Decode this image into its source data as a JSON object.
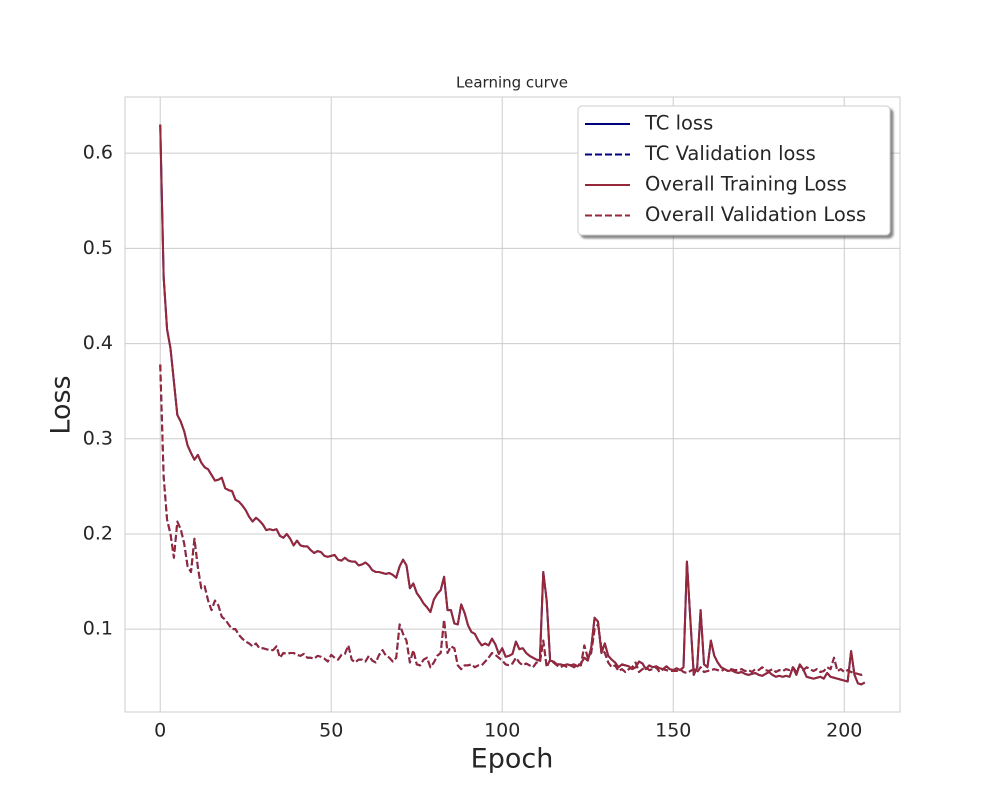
{
  "chart_data": {
    "type": "line",
    "title": "Learning curve",
    "x_label": "Epoch",
    "y_label": "Loss",
    "x": [
      0,
      1,
      2,
      3,
      4,
      5,
      6,
      7,
      8,
      9,
      10,
      11,
      12,
      13,
      14,
      15,
      16,
      17,
      18,
      19,
      20,
      21,
      22,
      23,
      24,
      25,
      26,
      27,
      28,
      29,
      30,
      31,
      32,
      33,
      34,
      35,
      36,
      37,
      38,
      39,
      40,
      41,
      42,
      43,
      44,
      45,
      46,
      47,
      48,
      49,
      50,
      51,
      52,
      53,
      54,
      55,
      56,
      57,
      58,
      59,
      60,
      61,
      62,
      63,
      64,
      65,
      66,
      67,
      68,
      69,
      70,
      71,
      72,
      73,
      74,
      75,
      76,
      77,
      78,
      79,
      80,
      81,
      82,
      83,
      84,
      85,
      86,
      87,
      88,
      89,
      90,
      91,
      92,
      93,
      94,
      95,
      96,
      97,
      98,
      99,
      100,
      101,
      102,
      103,
      104,
      105,
      106,
      107,
      108,
      109,
      110,
      111,
      112,
      113,
      114,
      115,
      116,
      117,
      118,
      119,
      120,
      121,
      122,
      123,
      124,
      125,
      126,
      127,
      128,
      129,
      130,
      131,
      132,
      133,
      134,
      135,
      136,
      137,
      138,
      139,
      140,
      141,
      142,
      143,
      144,
      145,
      146,
      147,
      148,
      149,
      150,
      151,
      152,
      153,
      154,
      155,
      156,
      157,
      158,
      159,
      160,
      161,
      162,
      163,
      164,
      165,
      166,
      167,
      168,
      169,
      170,
      171,
      172,
      173,
      174,
      175,
      176,
      177,
      178,
      179,
      180,
      181,
      182,
      183,
      184,
      185,
      186,
      187,
      188,
      189,
      190,
      191,
      192,
      193,
      194,
      195,
      196,
      197,
      198,
      199,
      200,
      201,
      202,
      203,
      204,
      205,
      206
    ],
    "series": [
      {
        "name": "TC loss",
        "color": "#00007f",
        "linestyle": "solid",
        "values": [
          0.63,
          0.47,
          0.415,
          0.395,
          0.36,
          0.325,
          0.318,
          0.308,
          0.293,
          0.285,
          0.278,
          0.283,
          0.275,
          0.27,
          0.268,
          0.262,
          0.256,
          0.257,
          0.259,
          0.248,
          0.246,
          0.245,
          0.236,
          0.234,
          0.23,
          0.225,
          0.218,
          0.213,
          0.217,
          0.214,
          0.21,
          0.204,
          0.205,
          0.204,
          0.205,
          0.198,
          0.196,
          0.2,
          0.195,
          0.188,
          0.193,
          0.188,
          0.187,
          0.187,
          0.183,
          0.18,
          0.182,
          0.181,
          0.177,
          0.176,
          0.177,
          0.178,
          0.173,
          0.172,
          0.175,
          0.172,
          0.171,
          0.171,
          0.167,
          0.168,
          0.17,
          0.167,
          0.162,
          0.16,
          0.16,
          0.159,
          0.158,
          0.159,
          0.157,
          0.154,
          0.166,
          0.173,
          0.167,
          0.143,
          0.148,
          0.138,
          0.133,
          0.127,
          0.123,
          0.118,
          0.131,
          0.137,
          0.141,
          0.155,
          0.12,
          0.12,
          0.106,
          0.105,
          0.126,
          0.117,
          0.104,
          0.097,
          0.095,
          0.088,
          0.083,
          0.085,
          0.083,
          0.09,
          0.084,
          0.074,
          0.08,
          0.071,
          0.072,
          0.074,
          0.087,
          0.079,
          0.08,
          0.075,
          0.072,
          0.07,
          0.068,
          0.067,
          0.16,
          0.13,
          0.067,
          0.066,
          0.063,
          0.063,
          0.062,
          0.063,
          0.062,
          0.063,
          0.061,
          0.064,
          0.07,
          0.067,
          0.08,
          0.112,
          0.108,
          0.075,
          0.085,
          0.072,
          0.068,
          0.065,
          0.06,
          0.063,
          0.062,
          0.061,
          0.058,
          0.06,
          0.066,
          0.064,
          0.058,
          0.062,
          0.06,
          0.061,
          0.059,
          0.058,
          0.061,
          0.058,
          0.057,
          0.059,
          0.057,
          0.06,
          0.171,
          0.11,
          0.052,
          0.06,
          0.12,
          0.063,
          0.06,
          0.088,
          0.072,
          0.065,
          0.06,
          0.058,
          0.056,
          0.057,
          0.055,
          0.054,
          0.055,
          0.053,
          0.052,
          0.053,
          0.054,
          0.052,
          0.051,
          0.053,
          0.055,
          0.052,
          0.05,
          0.051,
          0.05,
          0.051,
          0.05,
          0.06,
          0.052,
          0.063,
          0.058,
          0.05,
          0.049,
          0.048,
          0.049,
          0.05,
          0.048,
          0.054,
          0.05,
          0.049,
          0.048,
          0.047,
          0.046,
          0.045,
          0.077,
          0.052,
          0.043,
          0.042,
          0.044
        ]
      },
      {
        "name": "TC Validation loss",
        "color": "#00007f",
        "linestyle": "dashed",
        "values": [
          0.378,
          0.26,
          0.215,
          0.2,
          0.175,
          0.213,
          0.205,
          0.19,
          0.166,
          0.16,
          0.195,
          0.165,
          0.143,
          0.145,
          0.13,
          0.12,
          0.13,
          0.125,
          0.113,
          0.11,
          0.105,
          0.1,
          0.1,
          0.094,
          0.09,
          0.087,
          0.085,
          0.082,
          0.085,
          0.08,
          0.08,
          0.079,
          0.078,
          0.078,
          0.082,
          0.07,
          0.075,
          0.074,
          0.075,
          0.075,
          0.073,
          0.072,
          0.074,
          0.07,
          0.07,
          0.069,
          0.072,
          0.071,
          0.069,
          0.066,
          0.073,
          0.07,
          0.068,
          0.073,
          0.074,
          0.083,
          0.068,
          0.065,
          0.068,
          0.068,
          0.066,
          0.072,
          0.067,
          0.065,
          0.073,
          0.078,
          0.072,
          0.07,
          0.066,
          0.07,
          0.105,
          0.095,
          0.088,
          0.065,
          0.078,
          0.063,
          0.062,
          0.068,
          0.07,
          0.06,
          0.065,
          0.072,
          0.075,
          0.11,
          0.075,
          0.082,
          0.08,
          0.062,
          0.058,
          0.062,
          0.062,
          0.063,
          0.06,
          0.062,
          0.062,
          0.066,
          0.07,
          0.075,
          0.073,
          0.07,
          0.067,
          0.063,
          0.062,
          0.064,
          0.07,
          0.065,
          0.062,
          0.064,
          0.062,
          0.06,
          0.065,
          0.065,
          0.088,
          0.06,
          0.068,
          0.065,
          0.062,
          0.06,
          0.062,
          0.06,
          0.062,
          0.06,
          0.063,
          0.062,
          0.083,
          0.07,
          0.075,
          0.1,
          0.105,
          0.08,
          0.075,
          0.065,
          0.06,
          0.062,
          0.056,
          0.058,
          0.055,
          0.058,
          0.06,
          0.065,
          0.055,
          0.058,
          0.06,
          0.057,
          0.058,
          0.06,
          0.055,
          0.058,
          0.057,
          0.056,
          0.056,
          0.056,
          0.058,
          0.055,
          0.054,
          0.056,
          0.058,
          0.055,
          0.06,
          0.055,
          0.056,
          0.057,
          0.058,
          0.057,
          0.056,
          0.058,
          0.056,
          0.058,
          0.057,
          0.057,
          0.058,
          0.056,
          0.057,
          0.055,
          0.058,
          0.057,
          0.06,
          0.057,
          0.056,
          0.058,
          0.055,
          0.057,
          0.056,
          0.058,
          0.057,
          0.06,
          0.055,
          0.062,
          0.057,
          0.06,
          0.058,
          0.056,
          0.058,
          0.055,
          0.056,
          0.06,
          0.058,
          0.07,
          0.056,
          0.058,
          0.055,
          0.057,
          0.055,
          0.054,
          0.053,
          0.052,
          0.053
        ]
      },
      {
        "name": "Overall Training Loss",
        "color": "#96283a",
        "linestyle": "solid",
        "values": [
          0.63,
          0.47,
          0.415,
          0.395,
          0.36,
          0.325,
          0.318,
          0.308,
          0.293,
          0.285,
          0.278,
          0.283,
          0.275,
          0.27,
          0.268,
          0.262,
          0.256,
          0.257,
          0.259,
          0.248,
          0.246,
          0.245,
          0.236,
          0.234,
          0.23,
          0.225,
          0.218,
          0.213,
          0.217,
          0.214,
          0.21,
          0.204,
          0.205,
          0.204,
          0.205,
          0.198,
          0.196,
          0.2,
          0.195,
          0.188,
          0.193,
          0.188,
          0.187,
          0.187,
          0.183,
          0.18,
          0.182,
          0.181,
          0.177,
          0.176,
          0.177,
          0.178,
          0.173,
          0.172,
          0.175,
          0.172,
          0.171,
          0.171,
          0.167,
          0.168,
          0.17,
          0.167,
          0.162,
          0.16,
          0.16,
          0.159,
          0.158,
          0.159,
          0.157,
          0.154,
          0.166,
          0.173,
          0.167,
          0.143,
          0.148,
          0.138,
          0.133,
          0.127,
          0.123,
          0.118,
          0.131,
          0.137,
          0.141,
          0.155,
          0.12,
          0.12,
          0.106,
          0.105,
          0.126,
          0.117,
          0.104,
          0.097,
          0.095,
          0.088,
          0.083,
          0.085,
          0.083,
          0.09,
          0.084,
          0.074,
          0.08,
          0.071,
          0.072,
          0.074,
          0.087,
          0.079,
          0.08,
          0.075,
          0.072,
          0.07,
          0.068,
          0.067,
          0.16,
          0.13,
          0.067,
          0.066,
          0.063,
          0.063,
          0.062,
          0.063,
          0.062,
          0.063,
          0.061,
          0.064,
          0.07,
          0.067,
          0.08,
          0.112,
          0.108,
          0.075,
          0.085,
          0.072,
          0.068,
          0.065,
          0.06,
          0.063,
          0.062,
          0.061,
          0.058,
          0.06,
          0.066,
          0.064,
          0.058,
          0.062,
          0.06,
          0.061,
          0.059,
          0.058,
          0.061,
          0.058,
          0.057,
          0.059,
          0.057,
          0.06,
          0.171,
          0.11,
          0.052,
          0.06,
          0.12,
          0.063,
          0.06,
          0.088,
          0.072,
          0.065,
          0.06,
          0.058,
          0.056,
          0.057,
          0.055,
          0.054,
          0.055,
          0.053,
          0.052,
          0.053,
          0.054,
          0.052,
          0.051,
          0.053,
          0.055,
          0.052,
          0.05,
          0.051,
          0.05,
          0.051,
          0.05,
          0.06,
          0.052,
          0.063,
          0.058,
          0.05,
          0.049,
          0.048,
          0.049,
          0.05,
          0.048,
          0.054,
          0.05,
          0.049,
          0.048,
          0.047,
          0.046,
          0.045,
          0.077,
          0.052,
          0.043,
          0.042,
          0.044
        ]
      },
      {
        "name": "Overall Validation Loss",
        "color": "#96283a",
        "linestyle": "dashed",
        "values": [
          0.378,
          0.26,
          0.215,
          0.2,
          0.175,
          0.213,
          0.205,
          0.19,
          0.166,
          0.16,
          0.195,
          0.165,
          0.143,
          0.145,
          0.13,
          0.12,
          0.13,
          0.125,
          0.113,
          0.11,
          0.105,
          0.1,
          0.1,
          0.094,
          0.09,
          0.087,
          0.085,
          0.082,
          0.085,
          0.08,
          0.08,
          0.079,
          0.078,
          0.078,
          0.082,
          0.07,
          0.075,
          0.074,
          0.075,
          0.075,
          0.073,
          0.072,
          0.074,
          0.07,
          0.07,
          0.069,
          0.072,
          0.071,
          0.069,
          0.066,
          0.073,
          0.07,
          0.068,
          0.073,
          0.074,
          0.083,
          0.068,
          0.065,
          0.068,
          0.068,
          0.066,
          0.072,
          0.067,
          0.065,
          0.073,
          0.078,
          0.072,
          0.07,
          0.066,
          0.07,
          0.105,
          0.095,
          0.088,
          0.065,
          0.078,
          0.063,
          0.062,
          0.068,
          0.07,
          0.06,
          0.065,
          0.072,
          0.075,
          0.11,
          0.075,
          0.082,
          0.08,
          0.062,
          0.058,
          0.062,
          0.062,
          0.063,
          0.06,
          0.062,
          0.062,
          0.066,
          0.07,
          0.075,
          0.073,
          0.07,
          0.067,
          0.063,
          0.062,
          0.064,
          0.07,
          0.065,
          0.062,
          0.064,
          0.062,
          0.06,
          0.065,
          0.065,
          0.088,
          0.06,
          0.068,
          0.065,
          0.062,
          0.06,
          0.062,
          0.06,
          0.062,
          0.06,
          0.063,
          0.062,
          0.083,
          0.07,
          0.075,
          0.1,
          0.105,
          0.08,
          0.075,
          0.065,
          0.06,
          0.062,
          0.056,
          0.058,
          0.055,
          0.058,
          0.06,
          0.065,
          0.055,
          0.058,
          0.06,
          0.057,
          0.058,
          0.06,
          0.055,
          0.058,
          0.057,
          0.056,
          0.056,
          0.056,
          0.058,
          0.055,
          0.054,
          0.056,
          0.058,
          0.055,
          0.06,
          0.055,
          0.056,
          0.057,
          0.058,
          0.057,
          0.056,
          0.058,
          0.056,
          0.058,
          0.057,
          0.057,
          0.058,
          0.056,
          0.057,
          0.055,
          0.058,
          0.057,
          0.06,
          0.057,
          0.056,
          0.058,
          0.055,
          0.057,
          0.056,
          0.058,
          0.057,
          0.06,
          0.055,
          0.062,
          0.057,
          0.06,
          0.058,
          0.056,
          0.058,
          0.055,
          0.056,
          0.06,
          0.058,
          0.07,
          0.056,
          0.058,
          0.055,
          0.057,
          0.055,
          0.054,
          0.053,
          0.052,
          0.053
        ]
      }
    ],
    "xlim": [
      -10.3,
      216.3
    ],
    "ylim": [
      0.013,
      0.659
    ],
    "xticks": [
      0,
      50,
      100,
      150,
      200
    ],
    "yticks": [
      0.1,
      0.2,
      0.3,
      0.4,
      0.5,
      0.6
    ],
    "grid": true,
    "legend": "upper right"
  }
}
